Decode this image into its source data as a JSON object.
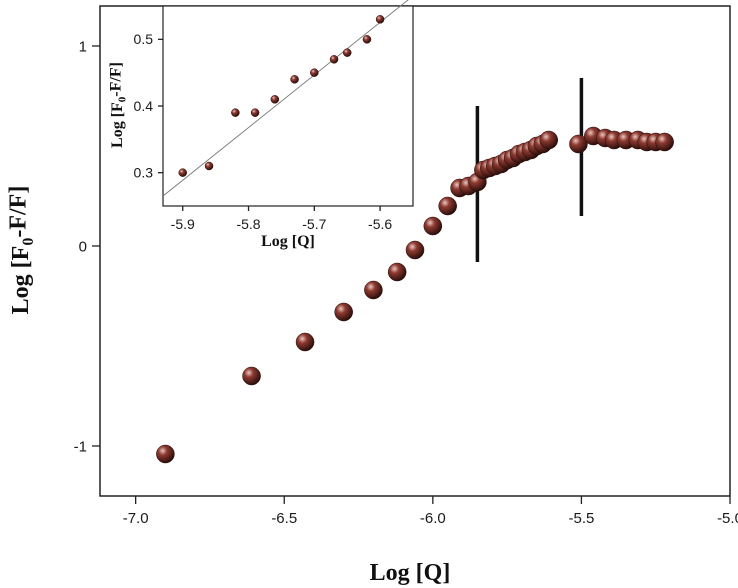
{
  "chart_data": [
    {
      "type": "scatter",
      "xlabel": "Log [Q]",
      "ylabel_parts": [
        "Log [F",
        "0",
        "-F/F]"
      ],
      "xlim": [
        -7.12,
        -5.0
      ],
      "ylim": [
        -1.25,
        1.2
      ],
      "xticks": [
        -7.0,
        -6.5,
        -6.0,
        -5.5,
        -5.0
      ],
      "xtick_labels": [
        "-7.0",
        "-6.5",
        "-6.0",
        "-5.5",
        "-5.0"
      ],
      "yticks": [
        -1,
        0,
        1
      ],
      "ytick_labels": [
        "-1",
        "0",
        "1"
      ],
      "marker_color": "#6b2b24",
      "series": [
        {
          "x": [
            -6.9,
            -6.61,
            -6.43,
            -6.3,
            -6.2,
            -6.12,
            -6.06,
            -6.0,
            -5.95,
            -5.91,
            -5.88,
            -5.85,
            -5.83,
            -5.81,
            -5.79,
            -5.77,
            -5.75,
            -5.73,
            -5.71,
            -5.69,
            -5.67,
            -5.65,
            -5.63,
            -5.61,
            -5.51,
            -5.46,
            -5.42,
            -5.39,
            -5.35,
            -5.31,
            -5.28,
            -5.25,
            -5.22
          ],
          "y": [
            -1.04,
            -0.65,
            -0.48,
            -0.33,
            -0.22,
            -0.13,
            -0.02,
            0.1,
            0.2,
            0.29,
            0.3,
            0.32,
            0.38,
            0.39,
            0.4,
            0.41,
            0.43,
            0.44,
            0.46,
            0.47,
            0.48,
            0.5,
            0.51,
            0.53,
            0.51,
            0.55,
            0.54,
            0.53,
            0.53,
            0.53,
            0.52,
            0.52,
            0.52
          ]
        }
      ],
      "vertical_markers": [
        {
          "x": -5.85,
          "y_range": [
            -0.08,
            0.7
          ]
        },
        {
          "x": -5.5,
          "y_range": [
            0.15,
            0.84
          ]
        }
      ]
    },
    {
      "type": "scatter",
      "inset": true,
      "xlabel": "Log [Q]",
      "ylabel_parts": [
        "Log [F",
        "0",
        "-F/F]"
      ],
      "xlim": [
        -5.93,
        -5.55
      ],
      "ylim": [
        0.25,
        0.55
      ],
      "xticks": [
        -5.9,
        -5.8,
        -5.7,
        -5.6
      ],
      "xtick_labels": [
        "-5.9",
        "-5.8",
        "-5.7",
        "-5.6"
      ],
      "yticks": [
        0.3,
        0.4,
        0.5
      ],
      "ytick_labels": [
        "0.3",
        "0.4",
        "0.5"
      ],
      "marker_color": "#6b2b24",
      "series": [
        {
          "x": [
            -5.9,
            -5.86,
            -5.82,
            -5.79,
            -5.76,
            -5.73,
            -5.7,
            -5.67,
            -5.65,
            -5.62,
            -5.6
          ],
          "y": [
            0.3,
            0.31,
            0.39,
            0.39,
            0.41,
            0.44,
            0.45,
            0.47,
            0.48,
            0.5,
            0.53
          ]
        }
      ],
      "fit_line": {
        "x": [
          -5.93,
          -5.55
        ],
        "y": [
          0.265,
          0.565
        ]
      }
    }
  ]
}
